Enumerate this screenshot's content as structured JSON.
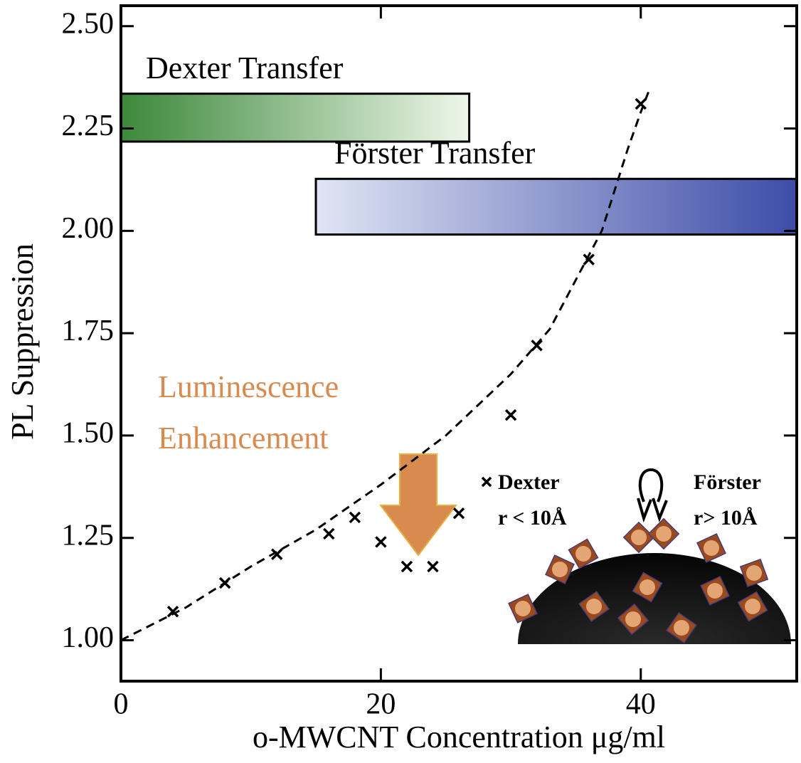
{
  "chart_data": {
    "type": "scatter",
    "xlabel": "o-MWCNT Concentration μg/ml",
    "ylabel": "PL Suppression",
    "x": [
      4,
      8,
      12,
      16,
      18,
      20,
      22,
      24,
      26,
      30,
      32,
      36,
      40
    ],
    "series": [
      {
        "name": "Dexter",
        "color": "#000000",
        "values": [
          1.07,
          1.14,
          1.21,
          1.26,
          1.3,
          1.24,
          1.18,
          1.18,
          1.31,
          1.55,
          1.72,
          1.93,
          2.31
        ]
      }
    ],
    "fit": {
      "color": "#000000",
      "x": [
        0,
        5,
        10,
        15,
        20,
        25,
        30,
        33,
        35,
        37,
        38,
        39,
        40,
        40.6
      ],
      "y": [
        1.0,
        1.08,
        1.18,
        1.27,
        1.38,
        1.5,
        1.65,
        1.76,
        1.88,
        2.0,
        2.1,
        2.2,
        2.29,
        2.34
      ]
    },
    "bands": [
      {
        "label": "Dexter Transfer",
        "x": [
          0,
          26.8
        ],
        "y": [
          2.218,
          2.335
        ],
        "colors": [
          "#3c883a",
          "#eef7ea"
        ]
      },
      {
        "label": "Förster Transfer",
        "x": [
          15,
          52
        ],
        "y": [
          1.991,
          2.127
        ],
        "colors": [
          "#e0e5f4",
          "#3d4ca8"
        ]
      }
    ],
    "enhancement_label": [
      "Luminescence",
      "Enhancement"
    ],
    "dexter_range": "r < 10Å",
    "forster_label": "Förster",
    "forster_range": "r> 10Å",
    "xlim": [
      0,
      52
    ],
    "ylim": [
      0.9,
      2.55
    ],
    "xticks": [
      0,
      20,
      40
    ],
    "yticks": [
      {
        "value": 1,
        "label": "1.00"
      },
      {
        "value": 1.25,
        "label": "1.25"
      },
      {
        "value": 1.5,
        "label": "1.50"
      },
      {
        "value": 1.75,
        "label": "1.75"
      },
      {
        "value": 2,
        "label": "2.00"
      },
      {
        "value": 2.25,
        "label": "2.25"
      },
      {
        "value": 2.5,
        "label": "2.50"
      }
    ]
  }
}
